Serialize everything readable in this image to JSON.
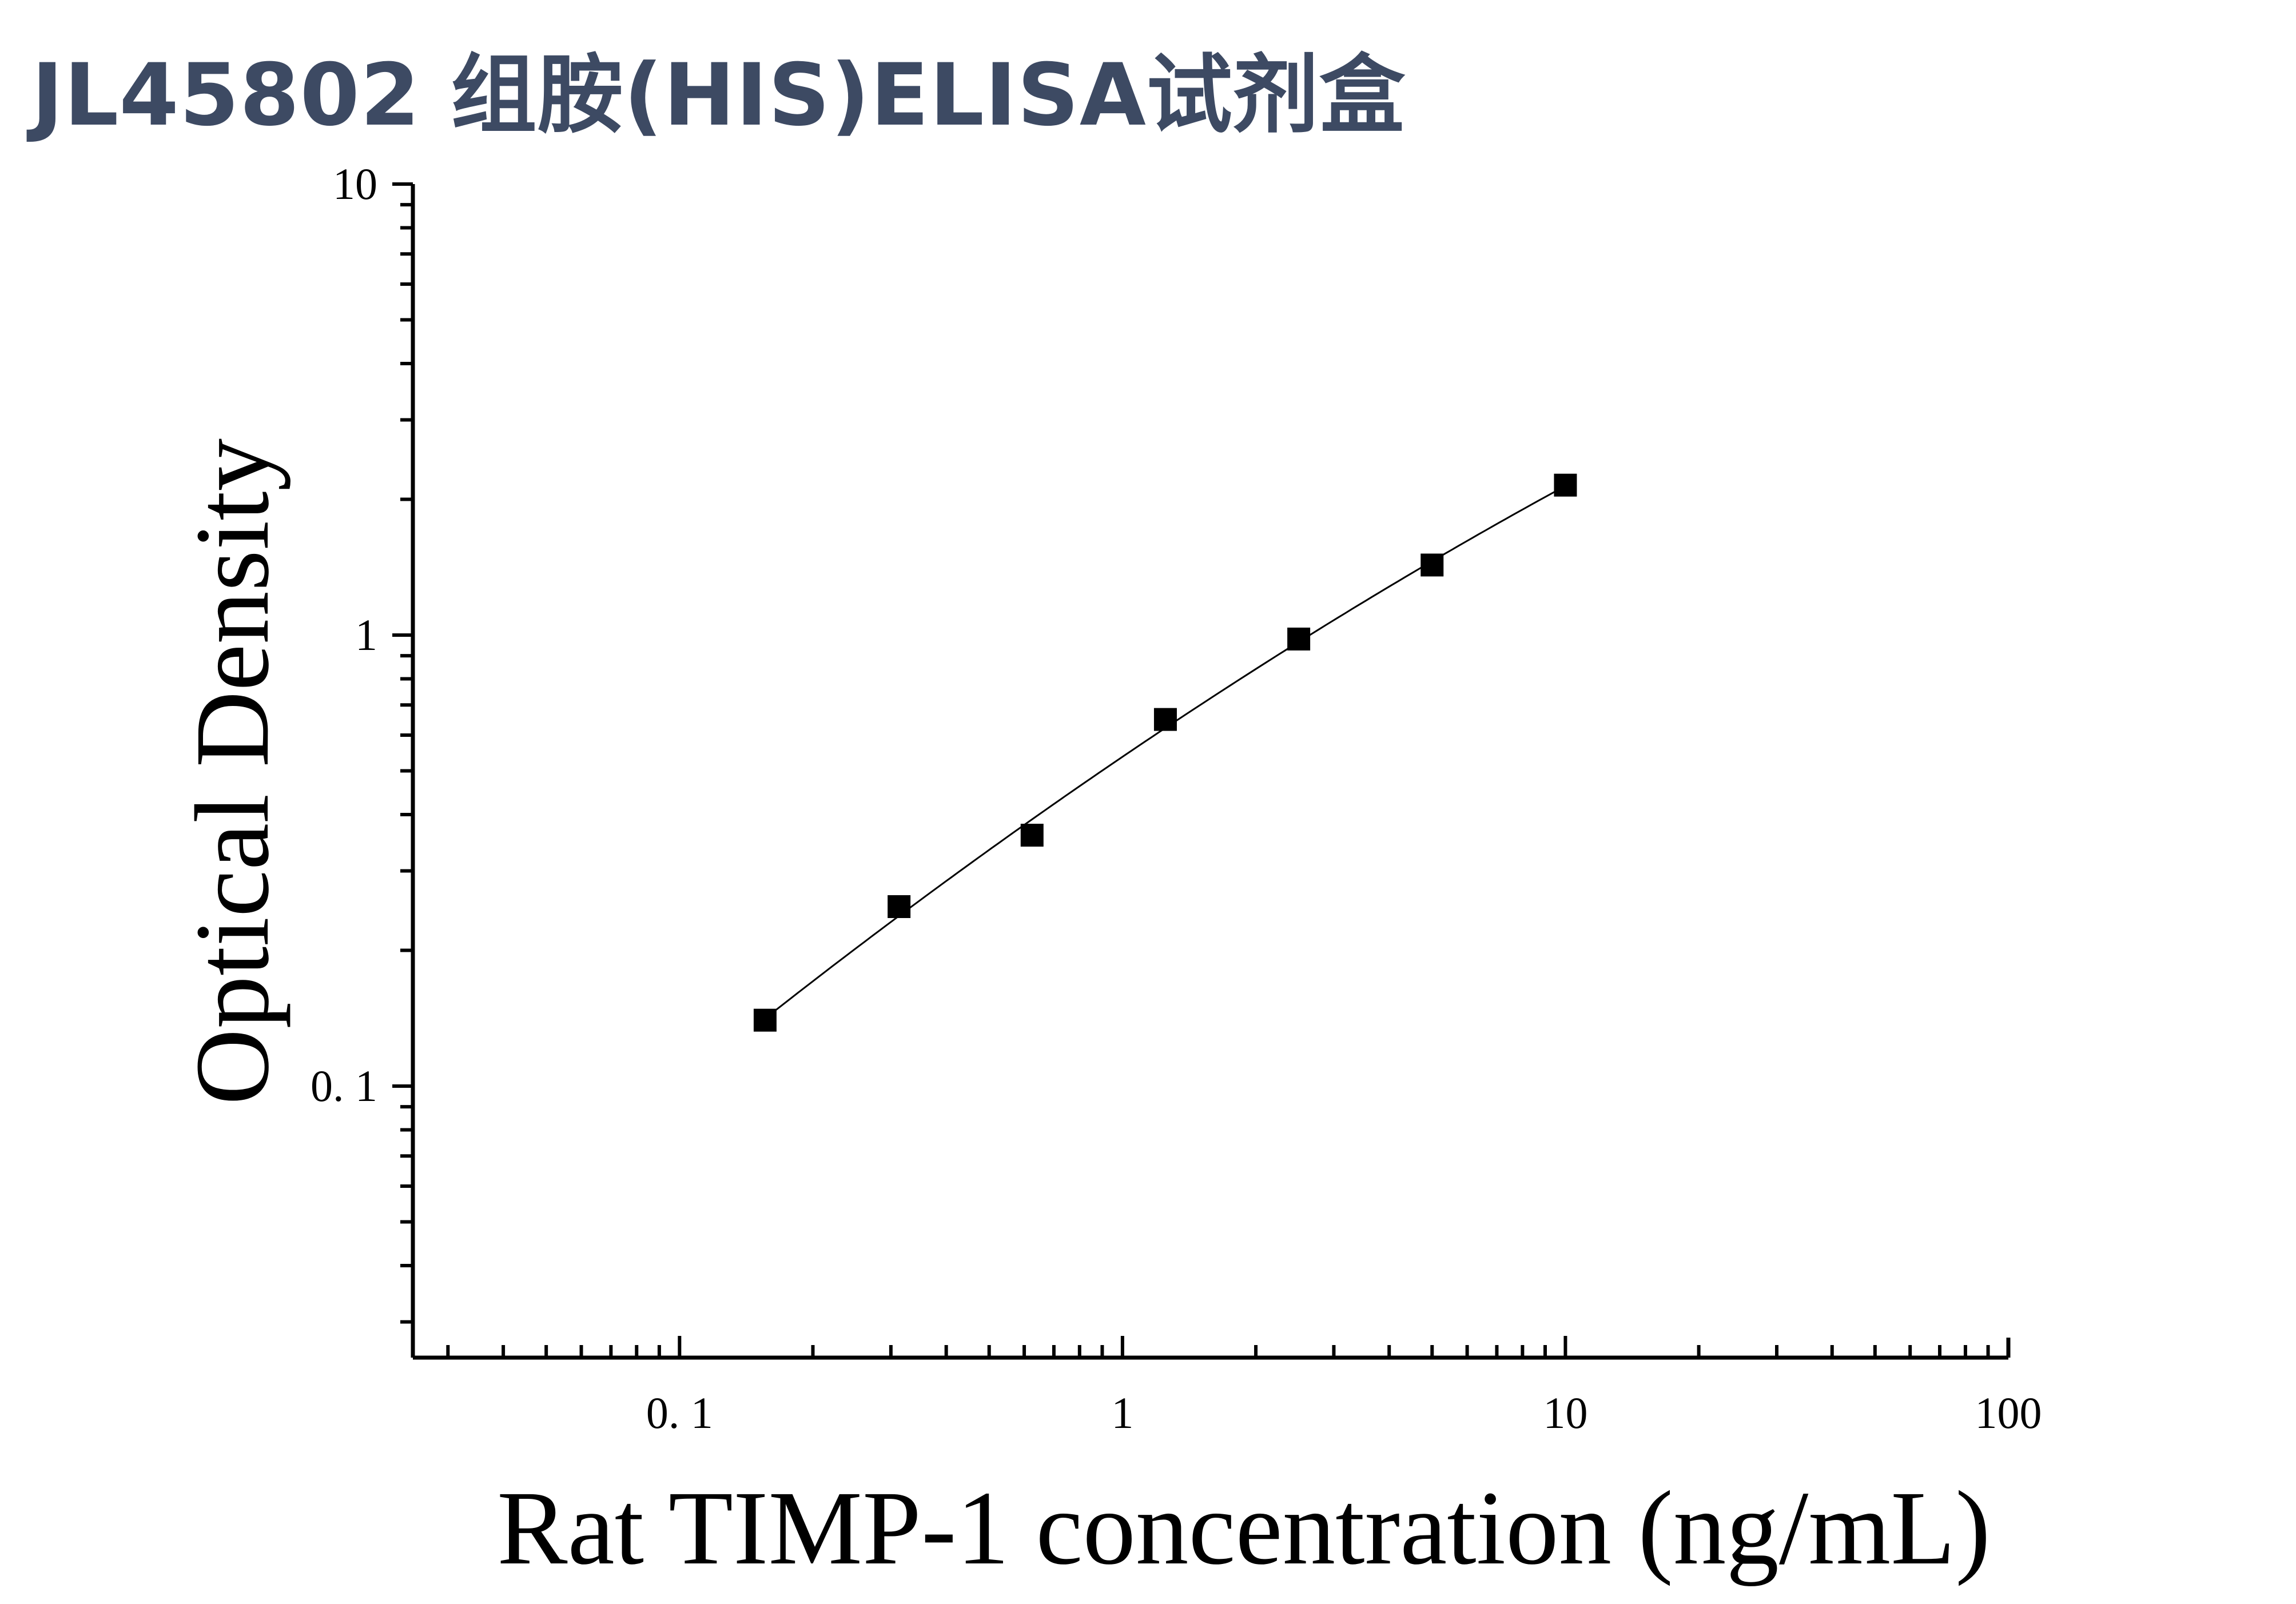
{
  "page": {
    "title": "JL45802 组胺(HIS)ELISA试剂盒"
  },
  "chart_data": {
    "type": "scatter",
    "title": "",
    "xlabel": "Rat TIMP-1 concentration (ng/mL)",
    "ylabel": "Optical Density",
    "x_scale": "log",
    "y_scale": "log",
    "xlim": [
      0.025,
      100
    ],
    "ylim": [
      0.025,
      10
    ],
    "x_ticks": [
      0.1,
      1,
      10,
      100
    ],
    "x_tick_labels": [
      "0. 1",
      "1",
      "10",
      "100"
    ],
    "y_ticks": [
      0.1,
      1,
      10
    ],
    "y_tick_labels": [
      "0. 1",
      "1",
      "10"
    ],
    "grid": false,
    "series": [
      {
        "marker": "square",
        "color": "#000000",
        "x": [
          0.156,
          0.313,
          0.625,
          1.25,
          2.5,
          5,
          10
        ],
        "y": [
          0.14,
          0.25,
          0.36,
          0.65,
          0.98,
          1.43,
          2.15
        ]
      }
    ],
    "fit_curve": {
      "color": "#000000",
      "from_x": 0.156,
      "to_x": 10
    }
  }
}
